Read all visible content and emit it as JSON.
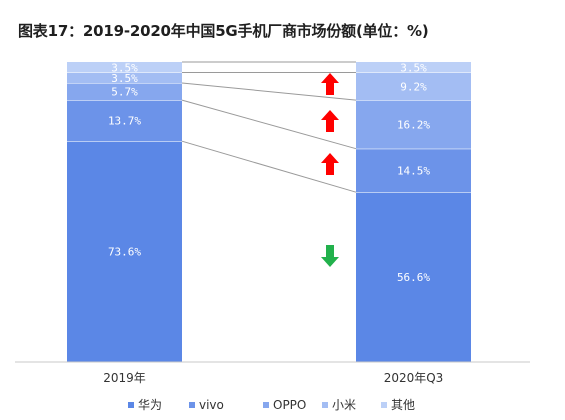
{
  "title": "图表17：2019-2020年中国5G手机厂商市场份额(单位：%)",
  "chart_data": {
    "type": "bar",
    "stacked": true,
    "categories": [
      "2019年",
      "2020年Q3"
    ],
    "series": [
      {
        "name": "华为",
        "color": "#5b87e6",
        "values": [
          73.6,
          56.6
        ],
        "labels": [
          "73.6%",
          "56.6%"
        ]
      },
      {
        "name": "vivo",
        "color": "#6c93e9",
        "values": [
          13.7,
          14.5
        ],
        "labels": [
          "13.7%",
          "14.5%"
        ]
      },
      {
        "name": "OPPO",
        "color": "#86a7ee",
        "values": [
          5.7,
          16.2
        ],
        "labels": [
          "5.7%",
          "16.2%"
        ]
      },
      {
        "name": "小米",
        "color": "#a3bdf3",
        "values": [
          3.5,
          9.2
        ],
        "labels": [
          "3.5%",
          "9.2%"
        ]
      },
      {
        "name": "其他",
        "color": "#bcd0f7",
        "values": [
          3.5,
          3.5
        ],
        "labels": [
          "3.5%",
          "3.5%"
        ]
      }
    ],
    "ylim": [
      0,
      100
    ],
    "legend_position": "bottom",
    "trend_arrows": [
      {
        "series": "小米",
        "direction": "up",
        "color": "#ff0000"
      },
      {
        "series": "OPPO",
        "direction": "up",
        "color": "#ff0000"
      },
      {
        "series": "vivo",
        "direction": "up",
        "color": "#ff0000"
      },
      {
        "series": "华为",
        "direction": "down",
        "color": "#22b14c"
      }
    ]
  }
}
